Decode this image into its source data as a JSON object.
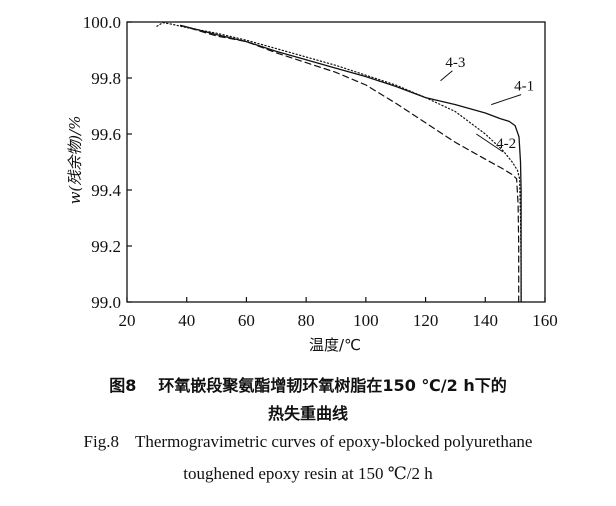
{
  "chart_data": {
    "type": "line",
    "xlabel": "温度/℃",
    "ylabel": "w(残余物)/%",
    "xlim": [
      20,
      160
    ],
    "ylim": [
      99.0,
      100.0
    ],
    "xticks": [
      "20",
      "40",
      "60",
      "80",
      "100",
      "120",
      "140",
      "160"
    ],
    "yticks": [
      "99.0",
      "99.2",
      "99.4",
      "99.6",
      "99.8",
      "100.0"
    ],
    "series": [
      {
        "name": "4-1",
        "style": "solid",
        "points": [
          [
            38,
            99.988
          ],
          [
            50,
            99.955
          ],
          [
            60,
            99.93
          ],
          [
            70,
            99.895
          ],
          [
            80,
            99.865
          ],
          [
            90,
            99.835
          ],
          [
            100,
            99.805
          ],
          [
            110,
            99.77
          ],
          [
            120,
            99.73
          ],
          [
            130,
            99.705
          ],
          [
            140,
            99.675
          ],
          [
            145,
            99.655
          ],
          [
            148,
            99.645
          ],
          [
            150,
            99.63
          ],
          [
            151.3,
            99.59
          ],
          [
            151.8,
            99.5
          ],
          [
            152,
            99.4
          ],
          [
            152,
            99.2
          ],
          [
            152,
            99.0
          ]
        ]
      },
      {
        "name": "4-2",
        "style": "dashed",
        "points": [
          [
            38,
            99.988
          ],
          [
            50,
            99.95
          ],
          [
            60,
            99.93
          ],
          [
            70,
            99.89
          ],
          [
            80,
            99.855
          ],
          [
            90,
            99.82
          ],
          [
            100,
            99.775
          ],
          [
            110,
            99.71
          ],
          [
            120,
            99.64
          ],
          [
            130,
            99.57
          ],
          [
            140,
            99.51
          ],
          [
            146,
            99.475
          ],
          [
            149,
            99.455
          ],
          [
            150.5,
            99.44
          ],
          [
            151,
            99.35
          ],
          [
            151.2,
            99.2
          ],
          [
            151.2,
            99.0
          ]
        ]
      },
      {
        "name": "4-3",
        "style": "dotted",
        "points": [
          [
            30,
            99.985
          ],
          [
            32,
            99.998
          ],
          [
            35,
            99.992
          ],
          [
            40,
            99.98
          ],
          [
            50,
            99.96
          ],
          [
            60,
            99.935
          ],
          [
            70,
            99.905
          ],
          [
            80,
            99.875
          ],
          [
            90,
            99.845
          ],
          [
            100,
            99.81
          ],
          [
            110,
            99.775
          ],
          [
            120,
            99.73
          ],
          [
            130,
            99.68
          ],
          [
            140,
            99.6
          ],
          [
            146,
            99.54
          ],
          [
            149,
            99.5
          ],
          [
            150.8,
            99.47
          ],
          [
            151.5,
            99.44
          ],
          [
            151.8,
            99.3
          ],
          [
            152,
            99.1
          ],
          [
            152,
            99.0
          ]
        ]
      }
    ],
    "annotations": [
      {
        "text": "4-3",
        "x": 130,
        "y": 99.84,
        "ax": 125,
        "ay": 99.79
      },
      {
        "text": "4-1",
        "x": 153,
        "y": 99.755,
        "ax": 142,
        "ay": 99.705
      },
      {
        "text": "4-2",
        "x": 147,
        "y": 99.55,
        "ax": 137,
        "ay": 99.6
      }
    ],
    "line_color": "#111111"
  },
  "caption": {
    "cn_label": "图8",
    "cn_title_1": "环氧嵌段聚氨酯增韧环氧树脂在150 ℃/2 h下的",
    "cn_title_2": "热失重曲线",
    "en_label": "Fig.8",
    "en_title_1": "Thermogravimetric curves of epoxy-blocked polyurethane",
    "en_title_2": "toughened epoxy resin at 150 ℃/2 h"
  }
}
